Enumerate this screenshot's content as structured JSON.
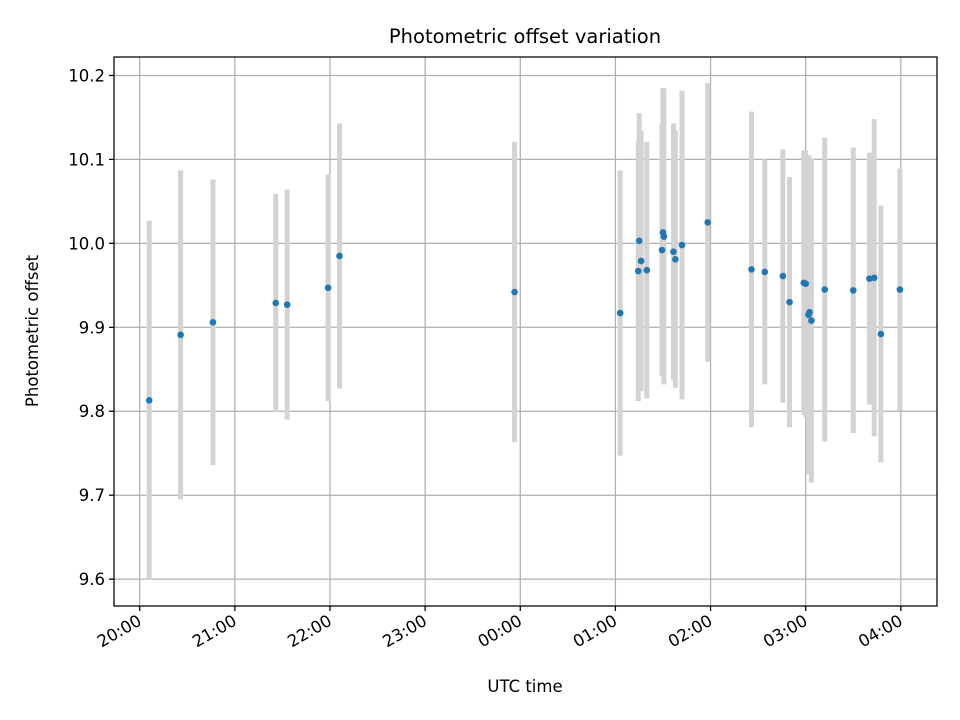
{
  "chart_data": {
    "type": "scatter",
    "title": "Photometric offset variation",
    "xlabel": "UTC time",
    "ylabel": "Photometric offset",
    "x_unit": "hours (timeline, 20:00 = 20, next-day hours > 24)",
    "xlim": [
      19.73,
      28.38
    ],
    "ylim": [
      9.568,
      10.222
    ],
    "x_ticks": [
      {
        "value": 20,
        "label": "20:00"
      },
      {
        "value": 21,
        "label": "21:00"
      },
      {
        "value": 22,
        "label": "22:00"
      },
      {
        "value": 23,
        "label": "23:00"
      },
      {
        "value": 24,
        "label": "00:00"
      },
      {
        "value": 25,
        "label": "01:00"
      },
      {
        "value": 26,
        "label": "02:00"
      },
      {
        "value": 27,
        "label": "03:00"
      },
      {
        "value": 28,
        "label": "04:00"
      }
    ],
    "y_ticks": [
      {
        "value": 9.6,
        "label": "9.6"
      },
      {
        "value": 9.7,
        "label": "9.7"
      },
      {
        "value": 9.8,
        "label": "9.8"
      },
      {
        "value": 9.9,
        "label": "9.9"
      },
      {
        "value": 10.0,
        "label": "10.0"
      },
      {
        "value": 10.1,
        "label": "10.1"
      },
      {
        "value": 10.2,
        "label": "10.2"
      }
    ],
    "grid": true,
    "point_color": "#1f77b4",
    "errorbar_color": "#d3d3d3",
    "points": [
      {
        "x": 20.1,
        "y": 9.813,
        "err": 0.214
      },
      {
        "x": 20.43,
        "y": 9.891,
        "err": 0.196
      },
      {
        "x": 20.77,
        "y": 9.906,
        "err": 0.17
      },
      {
        "x": 21.43,
        "y": 9.929,
        "err": 0.13
      },
      {
        "x": 21.55,
        "y": 9.927,
        "err": 0.137
      },
      {
        "x": 21.98,
        "y": 9.947,
        "err": 0.135
      },
      {
        "x": 22.1,
        "y": 9.985,
        "err": 0.158
      },
      {
        "x": 23.94,
        "y": 9.942,
        "err": 0.179
      },
      {
        "x": 25.05,
        "y": 9.917,
        "err": 0.17
      },
      {
        "x": 25.24,
        "y": 9.967,
        "err": 0.155
      },
      {
        "x": 25.25,
        "y": 10.003,
        "err": 0.152
      },
      {
        "x": 25.27,
        "y": 9.979,
        "err": 0.155
      },
      {
        "x": 25.33,
        "y": 9.968,
        "err": 0.153
      },
      {
        "x": 25.49,
        "y": 9.992,
        "err": 0.15
      },
      {
        "x": 25.5,
        "y": 10.013,
        "err": 0.172
      },
      {
        "x": 25.51,
        "y": 10.008,
        "err": 0.176
      },
      {
        "x": 25.61,
        "y": 9.99,
        "err": 0.153
      },
      {
        "x": 25.63,
        "y": 9.981,
        "err": 0.153
      },
      {
        "x": 25.7,
        "y": 9.998,
        "err": 0.184
      },
      {
        "x": 25.97,
        "y": 10.025,
        "err": 0.166
      },
      {
        "x": 26.43,
        "y": 9.969,
        "err": 0.188
      },
      {
        "x": 26.57,
        "y": 9.966,
        "err": 0.134
      },
      {
        "x": 26.76,
        "y": 9.961,
        "err": 0.151
      },
      {
        "x": 26.83,
        "y": 9.93,
        "err": 0.149
      },
      {
        "x": 26.98,
        "y": 9.953,
        "err": 0.157
      },
      {
        "x": 27.0,
        "y": 9.952,
        "err": 0.159
      },
      {
        "x": 27.03,
        "y": 9.915,
        "err": 0.19
      },
      {
        "x": 27.04,
        "y": 9.918,
        "err": 0.184
      },
      {
        "x": 27.06,
        "y": 9.908,
        "err": 0.193
      },
      {
        "x": 27.2,
        "y": 9.945,
        "err": 0.181
      },
      {
        "x": 27.5,
        "y": 9.944,
        "err": 0.17
      },
      {
        "x": 27.67,
        "y": 9.958,
        "err": 0.15
      },
      {
        "x": 27.72,
        "y": 9.959,
        "err": 0.189
      },
      {
        "x": 27.79,
        "y": 9.892,
        "err": 0.153
      },
      {
        "x": 27.99,
        "y": 9.945,
        "err": 0.144
      }
    ]
  }
}
